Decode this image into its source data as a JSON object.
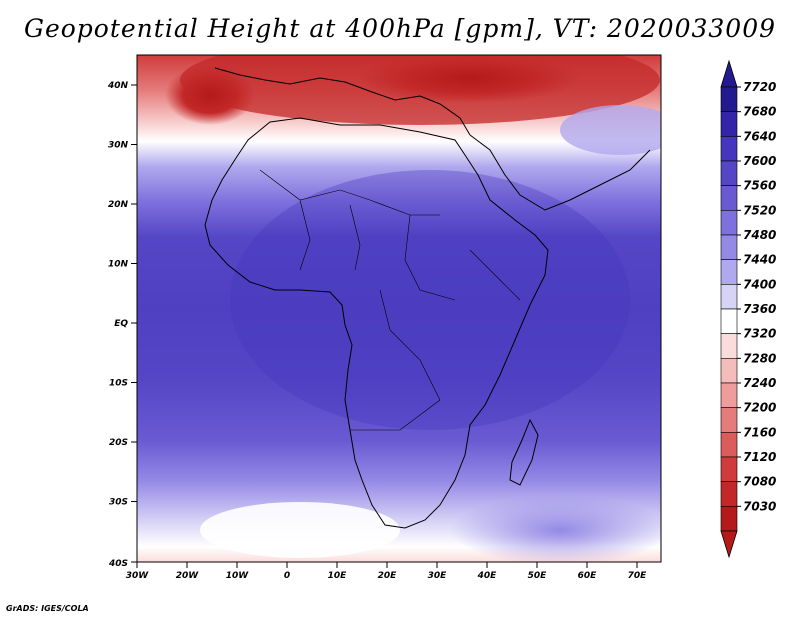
{
  "title": "Geopotential Height at 400hPa [gpm], VT: 2020033009",
  "footer": "GrADS: IGES/COLA",
  "map": {
    "lat_labels": [
      "40N",
      "30N",
      "20N",
      "10N",
      "EQ",
      "10S",
      "20S",
      "30S",
      "40S"
    ],
    "lon_labels": [
      "30W",
      "20W",
      "10W",
      "0",
      "10E",
      "20E",
      "30E",
      "40E",
      "50E",
      "60E",
      "70E"
    ]
  },
  "colorbar": {
    "levels": [
      "7720",
      "7680",
      "7640",
      "7600",
      "7560",
      "7520",
      "7480",
      "7440",
      "7400",
      "7360",
      "7320",
      "7280",
      "7240",
      "7200",
      "7160",
      "7120",
      "7080",
      "7030"
    ],
    "colors": [
      "#231a8f",
      "#3324a9",
      "#4536bd",
      "#5546c6",
      "#6a5ad2",
      "#7e70dd",
      "#9589e6",
      "#b1a9ee",
      "#d7d3f6",
      "#ffffff",
      "#fbdcdc",
      "#f5bcbc",
      "#ee9c9c",
      "#e57c7c",
      "#dc5c5c",
      "#d03c3c",
      "#c32828",
      "#b51a1a"
    ]
  }
}
